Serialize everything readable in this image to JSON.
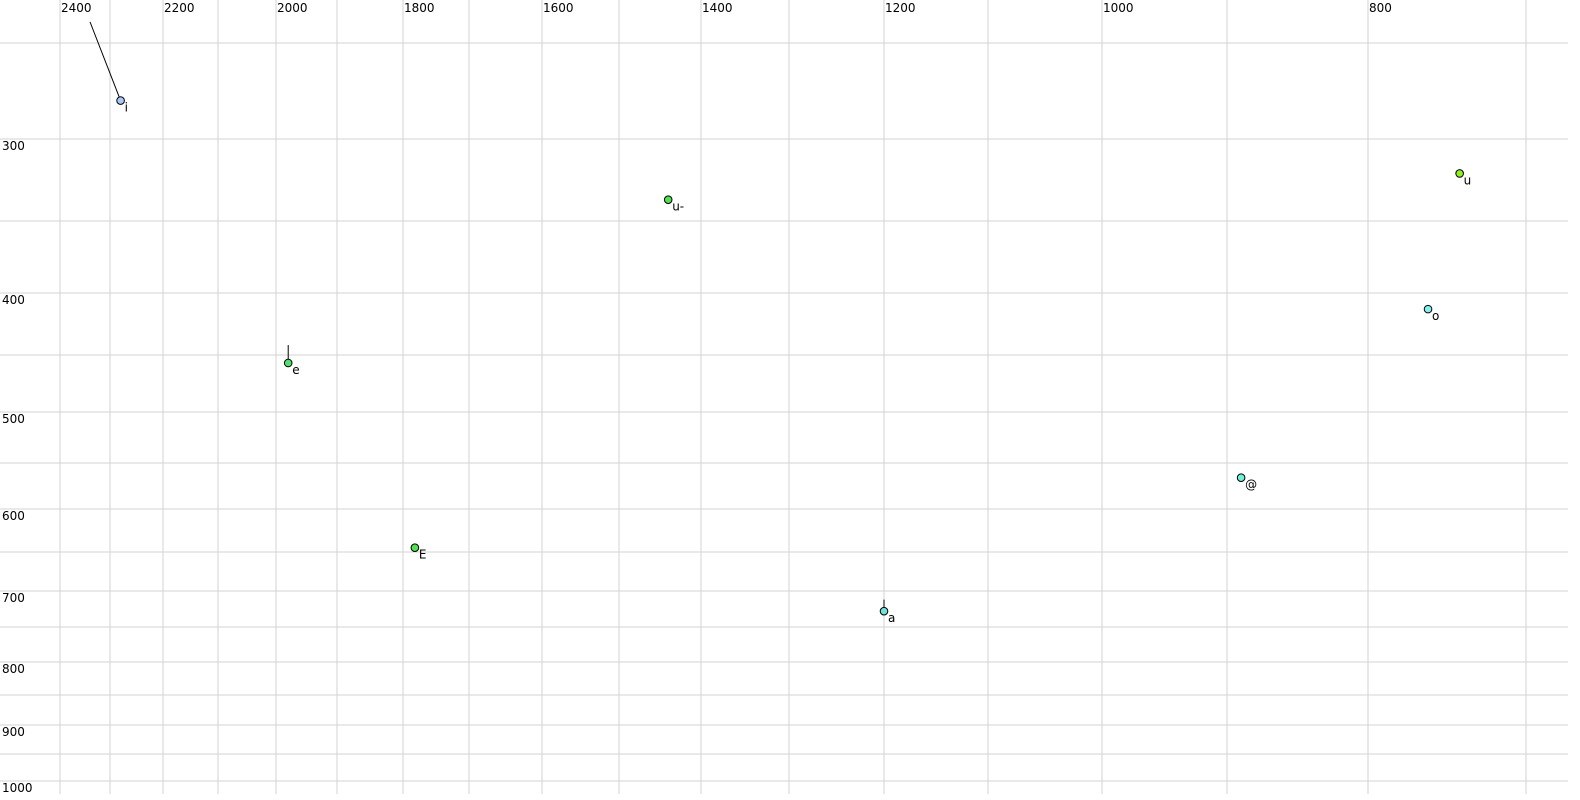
{
  "chart_data": {
    "type": "scatter",
    "title": "",
    "xlabel": "",
    "ylabel": "",
    "x_axis": {
      "reversed": true,
      "scale": "nonlinear (auditory)",
      "range": [
        2400,
        700
      ],
      "grid_values": [
        2400,
        2300,
        2200,
        2100,
        2000,
        1900,
        1800,
        1700,
        1600,
        1500,
        1400,
        1300,
        1200,
        1100,
        1000,
        900,
        800,
        700
      ],
      "tick_labels": [
        "2400",
        "2200",
        "2000",
        "1800",
        "1600",
        "1400",
        "1200",
        "1000",
        "800"
      ],
      "tick_values": [
        2400,
        2200,
        2000,
        1800,
        1600,
        1400,
        1200,
        1000,
        800
      ]
    },
    "y_axis": {
      "reversed": false,
      "scale": "nonlinear (auditory)",
      "range": [
        250,
        1000
      ],
      "grid_values": [
        250,
        300,
        350,
        400,
        450,
        500,
        550,
        600,
        650,
        700,
        750,
        800,
        850,
        900,
        950,
        1000
      ],
      "tick_labels": [
        "300",
        "400",
        "500",
        "600",
        "700",
        "800",
        "900",
        "1000"
      ],
      "tick_values": [
        300,
        400,
        500,
        600,
        700,
        800,
        900,
        1000
      ]
    },
    "grid": true,
    "points": [
      {
        "label": "i",
        "x": 2280,
        "y": 280,
        "color": "#a8c8f8",
        "trail": {
          "x": 2340,
          "y": 239
        }
      },
      {
        "label": "e",
        "x": 1980,
        "y": 457,
        "color": "#50e070",
        "trail": {
          "x": 1980,
          "y": 442
        }
      },
      {
        "label": "u-",
        "x": 1440,
        "y": 337,
        "color": "#50e050"
      },
      {
        "label": "u",
        "x": 742,
        "y": 321,
        "color": "#90f020"
      },
      {
        "label": "o",
        "x": 762,
        "y": 413,
        "color": "#80f0f0"
      },
      {
        "label": "@",
        "x": 890,
        "y": 566,
        "color": "#70f0d8"
      },
      {
        "label": "E",
        "x": 1782,
        "y": 645,
        "color": "#50e050"
      },
      {
        "label": "a",
        "x": 1200,
        "y": 728,
        "color": "#70e0d8",
        "trail": {
          "x": 1200,
          "y": 712
        }
      }
    ]
  }
}
